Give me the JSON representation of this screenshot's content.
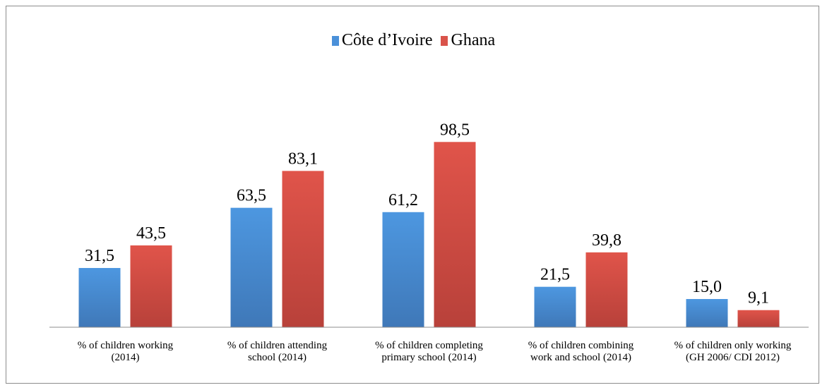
{
  "chart_data": {
    "type": "bar",
    "title": "",
    "xlabel": "",
    "ylabel": "",
    "ylim": [
      0,
      105
    ],
    "grid": false,
    "legend_position": "top-center",
    "categories": [
      [
        "% of children working",
        "(2014)"
      ],
      [
        "% of children attending",
        "school (2014)"
      ],
      [
        "% of children completing",
        "primary school (2014)"
      ],
      [
        "% of children combining",
        "work and school (2014)"
      ],
      [
        "% of children only working",
        "(GH 2006/ CDI 2012)"
      ]
    ],
    "series": [
      {
        "name": "Côte d’Ivoire",
        "color": "#4a90d9",
        "values": [
          31.5,
          63.5,
          61.2,
          21.5,
          15.0
        ],
        "labels": [
          "31,5",
          "63,5",
          "61,2",
          "21,5",
          "15,0"
        ]
      },
      {
        "name": "Ghana",
        "color": "#d9534a",
        "values": [
          43.5,
          83.1,
          98.5,
          39.8,
          9.1
        ],
        "labels": [
          "43,5",
          "83,1",
          "98,5",
          "39,8",
          "9,1"
        ]
      }
    ]
  }
}
